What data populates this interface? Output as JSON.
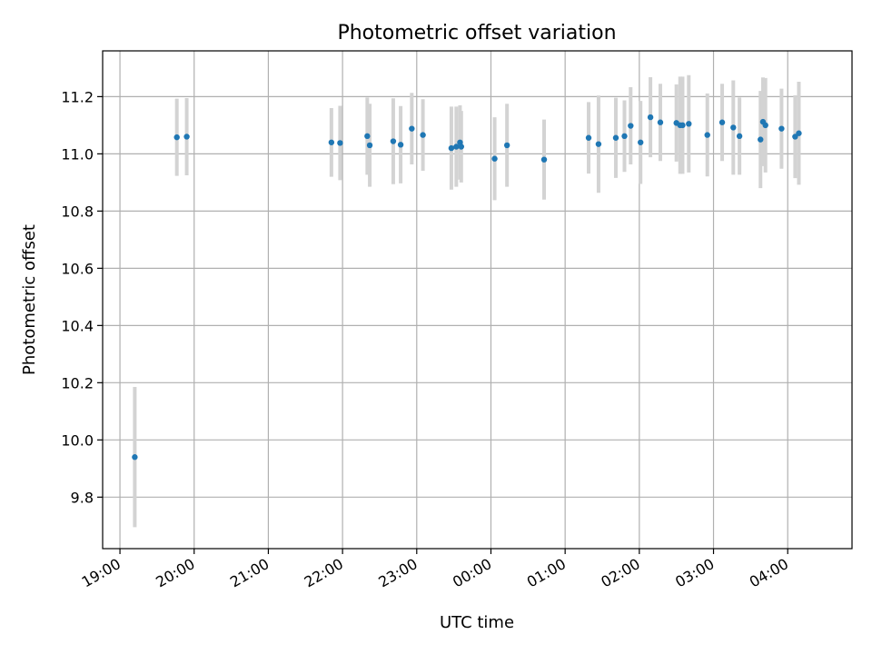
{
  "chart_data": {
    "type": "scatter",
    "title": "Photometric offset variation",
    "xlabel": "UTC time",
    "ylabel": "Photometric offset",
    "xlim": [
      "2023-01-01T18:46",
      "2023-01-02T04:52"
    ],
    "ylim": [
      9.62,
      11.36
    ],
    "yticks": [
      "9.8",
      "10.0",
      "10.2",
      "10.4",
      "10.6",
      "10.8",
      "11.0",
      "11.2"
    ],
    "xticks": [
      "19:00",
      "20:00",
      "21:00",
      "22:00",
      "23:00",
      "00:00",
      "01:00",
      "02:00",
      "03:00",
      "04:00"
    ],
    "grid": true,
    "colors": {
      "marker": "#1f77b4",
      "errorbar": "#d3d3d3"
    },
    "points": [
      {
        "x": "2023-01-01T19:12",
        "y": 9.94,
        "err": 0.245
      },
      {
        "x": "2023-01-01T19:46",
        "y": 11.058,
        "err": 0.135
      },
      {
        "x": "2023-01-01T19:54",
        "y": 11.06,
        "err": 0.135
      },
      {
        "x": "2023-01-01T21:51",
        "y": 11.04,
        "err": 0.12
      },
      {
        "x": "2023-01-01T21:58",
        "y": 11.038,
        "err": 0.13
      },
      {
        "x": "2023-01-01T22:20",
        "y": 11.062,
        "err": 0.135
      },
      {
        "x": "2023-01-01T22:22",
        "y": 11.03,
        "err": 0.145
      },
      {
        "x": "2023-01-01T22:41",
        "y": 11.044,
        "err": 0.15
      },
      {
        "x": "2023-01-01T22:47",
        "y": 11.032,
        "err": 0.135
      },
      {
        "x": "2023-01-01T22:56",
        "y": 11.088,
        "err": 0.125
      },
      {
        "x": "2023-01-01T23:05",
        "y": 11.066,
        "err": 0.125
      },
      {
        "x": "2023-01-01T23:28",
        "y": 11.02,
        "err": 0.145
      },
      {
        "x": "2023-01-01T23:32",
        "y": 11.025,
        "err": 0.14
      },
      {
        "x": "2023-01-01T23:35",
        "y": 11.04,
        "err": 0.13
      },
      {
        "x": "2023-01-01T23:36",
        "y": 11.025,
        "err": 0.125
      },
      {
        "x": "2023-01-02T00:03",
        "y": 10.983,
        "err": 0.145
      },
      {
        "x": "2023-01-02T00:13",
        "y": 11.03,
        "err": 0.145
      },
      {
        "x": "2023-01-02T00:43",
        "y": 10.98,
        "err": 0.14
      },
      {
        "x": "2023-01-02T01:19",
        "y": 11.056,
        "err": 0.125
      },
      {
        "x": "2023-01-02T01:27",
        "y": 11.034,
        "err": 0.17
      },
      {
        "x": "2023-01-02T01:41",
        "y": 11.056,
        "err": 0.14
      },
      {
        "x": "2023-01-02T01:48",
        "y": 11.062,
        "err": 0.125
      },
      {
        "x": "2023-01-02T01:53",
        "y": 11.098,
        "err": 0.135
      },
      {
        "x": "2023-01-02T02:01",
        "y": 11.04,
        "err": 0.145
      },
      {
        "x": "2023-01-02T02:09",
        "y": 11.128,
        "err": 0.14
      },
      {
        "x": "2023-01-02T02:17",
        "y": 11.11,
        "err": 0.135
      },
      {
        "x": "2023-01-02T02:30",
        "y": 11.108,
        "err": 0.135
      },
      {
        "x": "2023-01-02T02:33",
        "y": 11.1,
        "err": 0.17
      },
      {
        "x": "2023-01-02T02:35",
        "y": 11.1,
        "err": 0.17
      },
      {
        "x": "2023-01-02T02:40",
        "y": 11.105,
        "err": 0.17
      },
      {
        "x": "2023-01-02T02:55",
        "y": 11.066,
        "err": 0.145
      },
      {
        "x": "2023-01-02T03:07",
        "y": 11.11,
        "err": 0.135
      },
      {
        "x": "2023-01-02T03:16",
        "y": 11.092,
        "err": 0.165
      },
      {
        "x": "2023-01-02T03:21",
        "y": 11.062,
        "err": 0.135
      },
      {
        "x": "2023-01-02T03:38",
        "y": 11.05,
        "err": 0.17
      },
      {
        "x": "2023-01-02T03:40",
        "y": 11.112,
        "err": 0.155
      },
      {
        "x": "2023-01-02T03:42",
        "y": 11.1,
        "err": 0.165
      },
      {
        "x": "2023-01-02T03:55",
        "y": 11.088,
        "err": 0.14
      },
      {
        "x": "2023-01-02T04:06",
        "y": 11.06,
        "err": 0.145
      },
      {
        "x": "2023-01-02T04:09",
        "y": 11.072,
        "err": 0.18
      }
    ]
  }
}
